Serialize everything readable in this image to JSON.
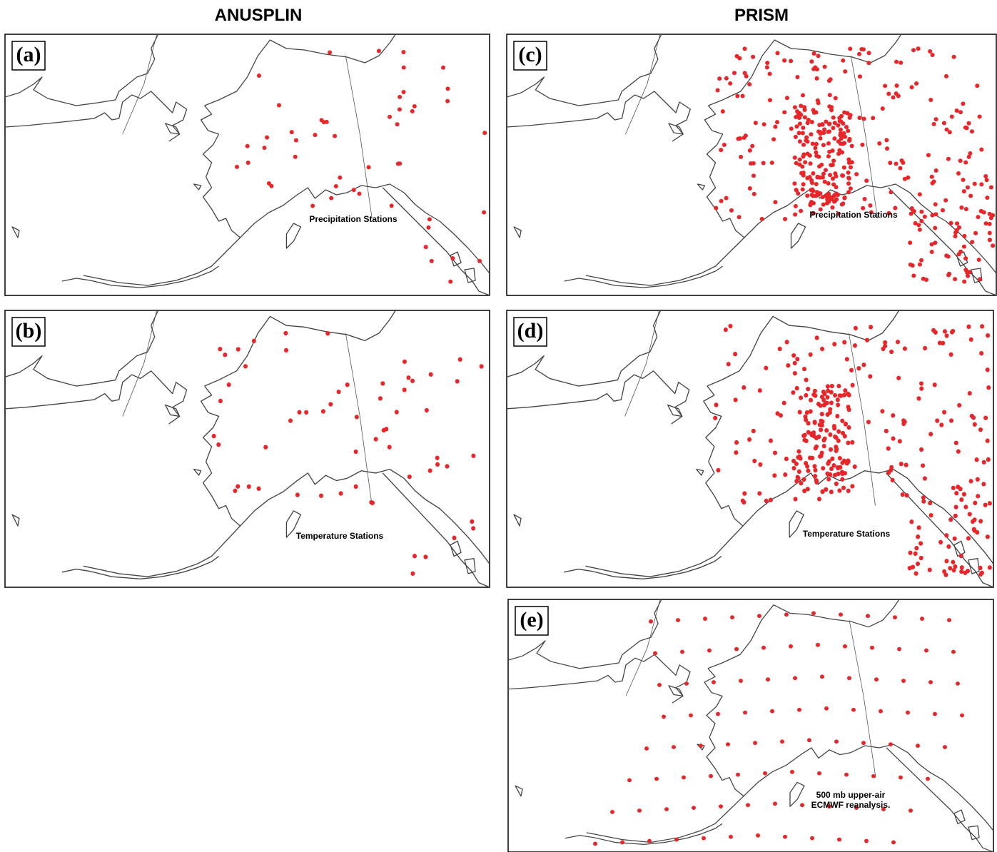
{
  "headers": [
    "ANUSPLIN",
    "PRISM"
  ],
  "panels": [
    {
      "label": "(a)",
      "caption": [
        "Precipitation Stations"
      ]
    },
    {
      "label": "(b)",
      "caption": [
        "Temperature Stations"
      ]
    },
    {
      "label": "(c)",
      "caption": [
        "Precipitation Stations"
      ]
    },
    {
      "label": "(d)",
      "caption": [
        "Temperature Stations"
      ]
    },
    {
      "label": "(e)",
      "caption": [
        "500 mb upper-air",
        "ECMWF reanalysis."
      ]
    }
  ]
}
